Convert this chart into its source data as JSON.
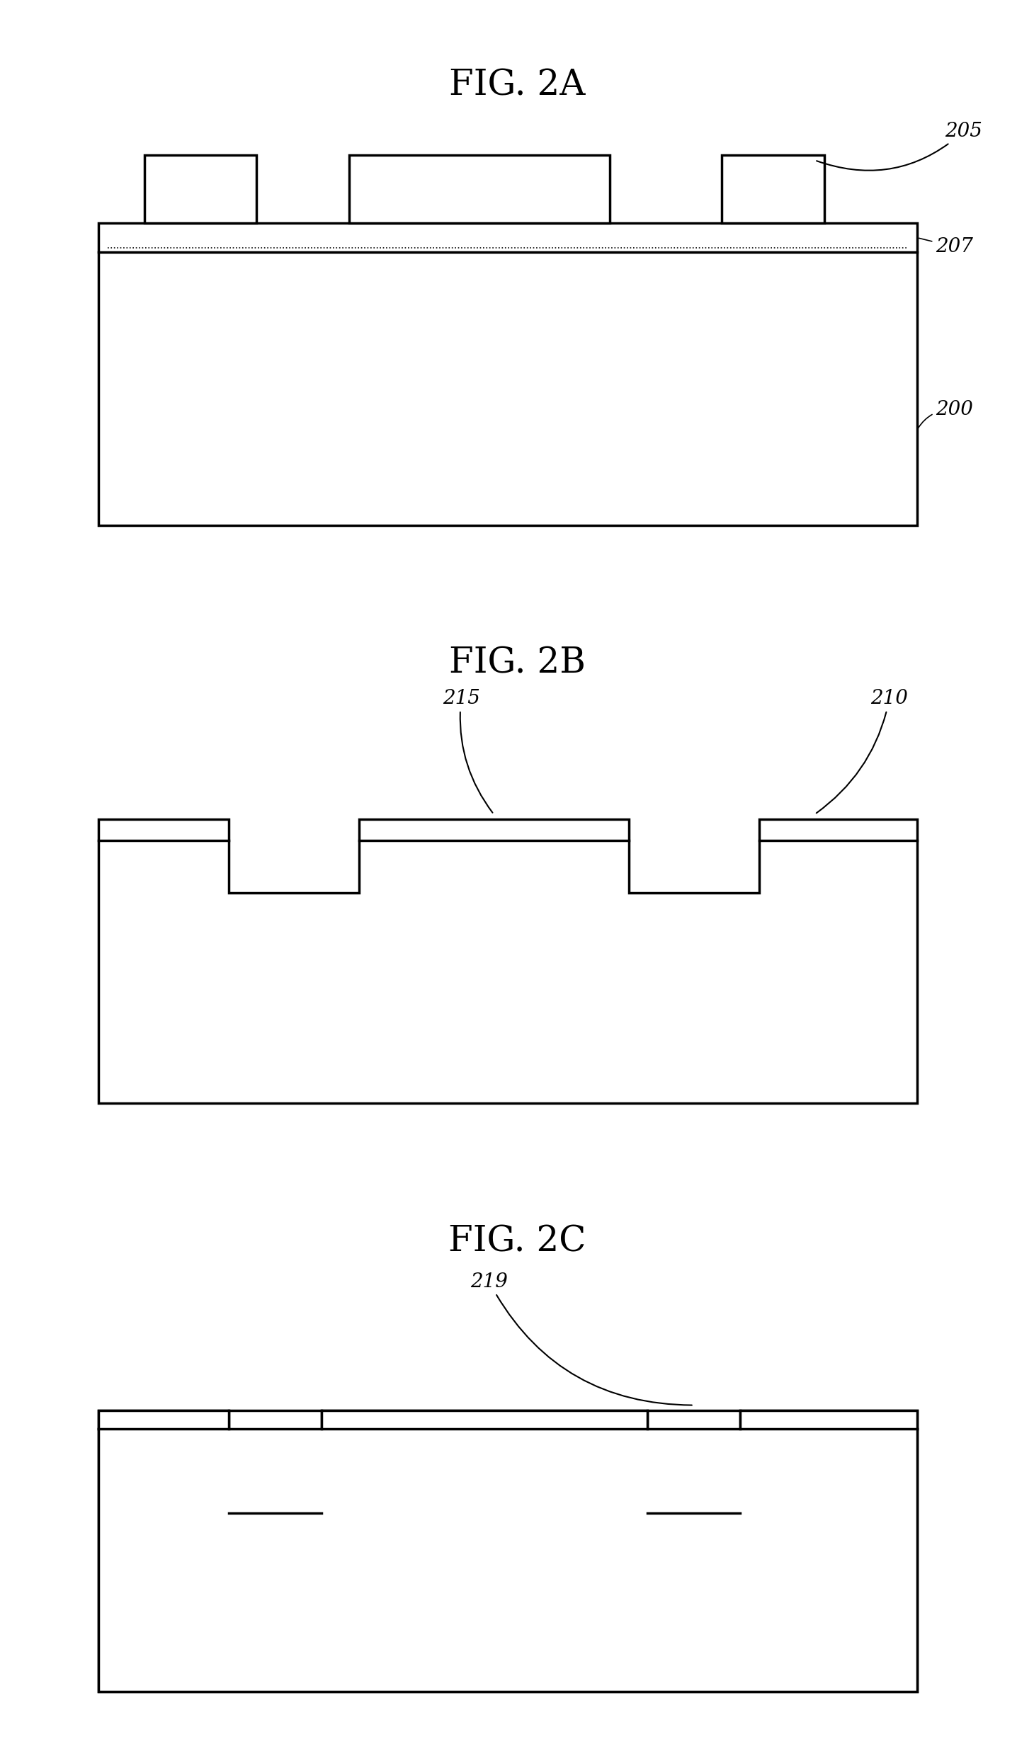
{
  "fig_title_a": "FIG. 2A",
  "fig_title_b": "FIG. 2B",
  "fig_title_c": "FIG. 2C",
  "title_fontsize": 36,
  "annotation_fontsize": 20,
  "background": "#ffffff",
  "line_color": "#000000",
  "line_width": 2.5
}
